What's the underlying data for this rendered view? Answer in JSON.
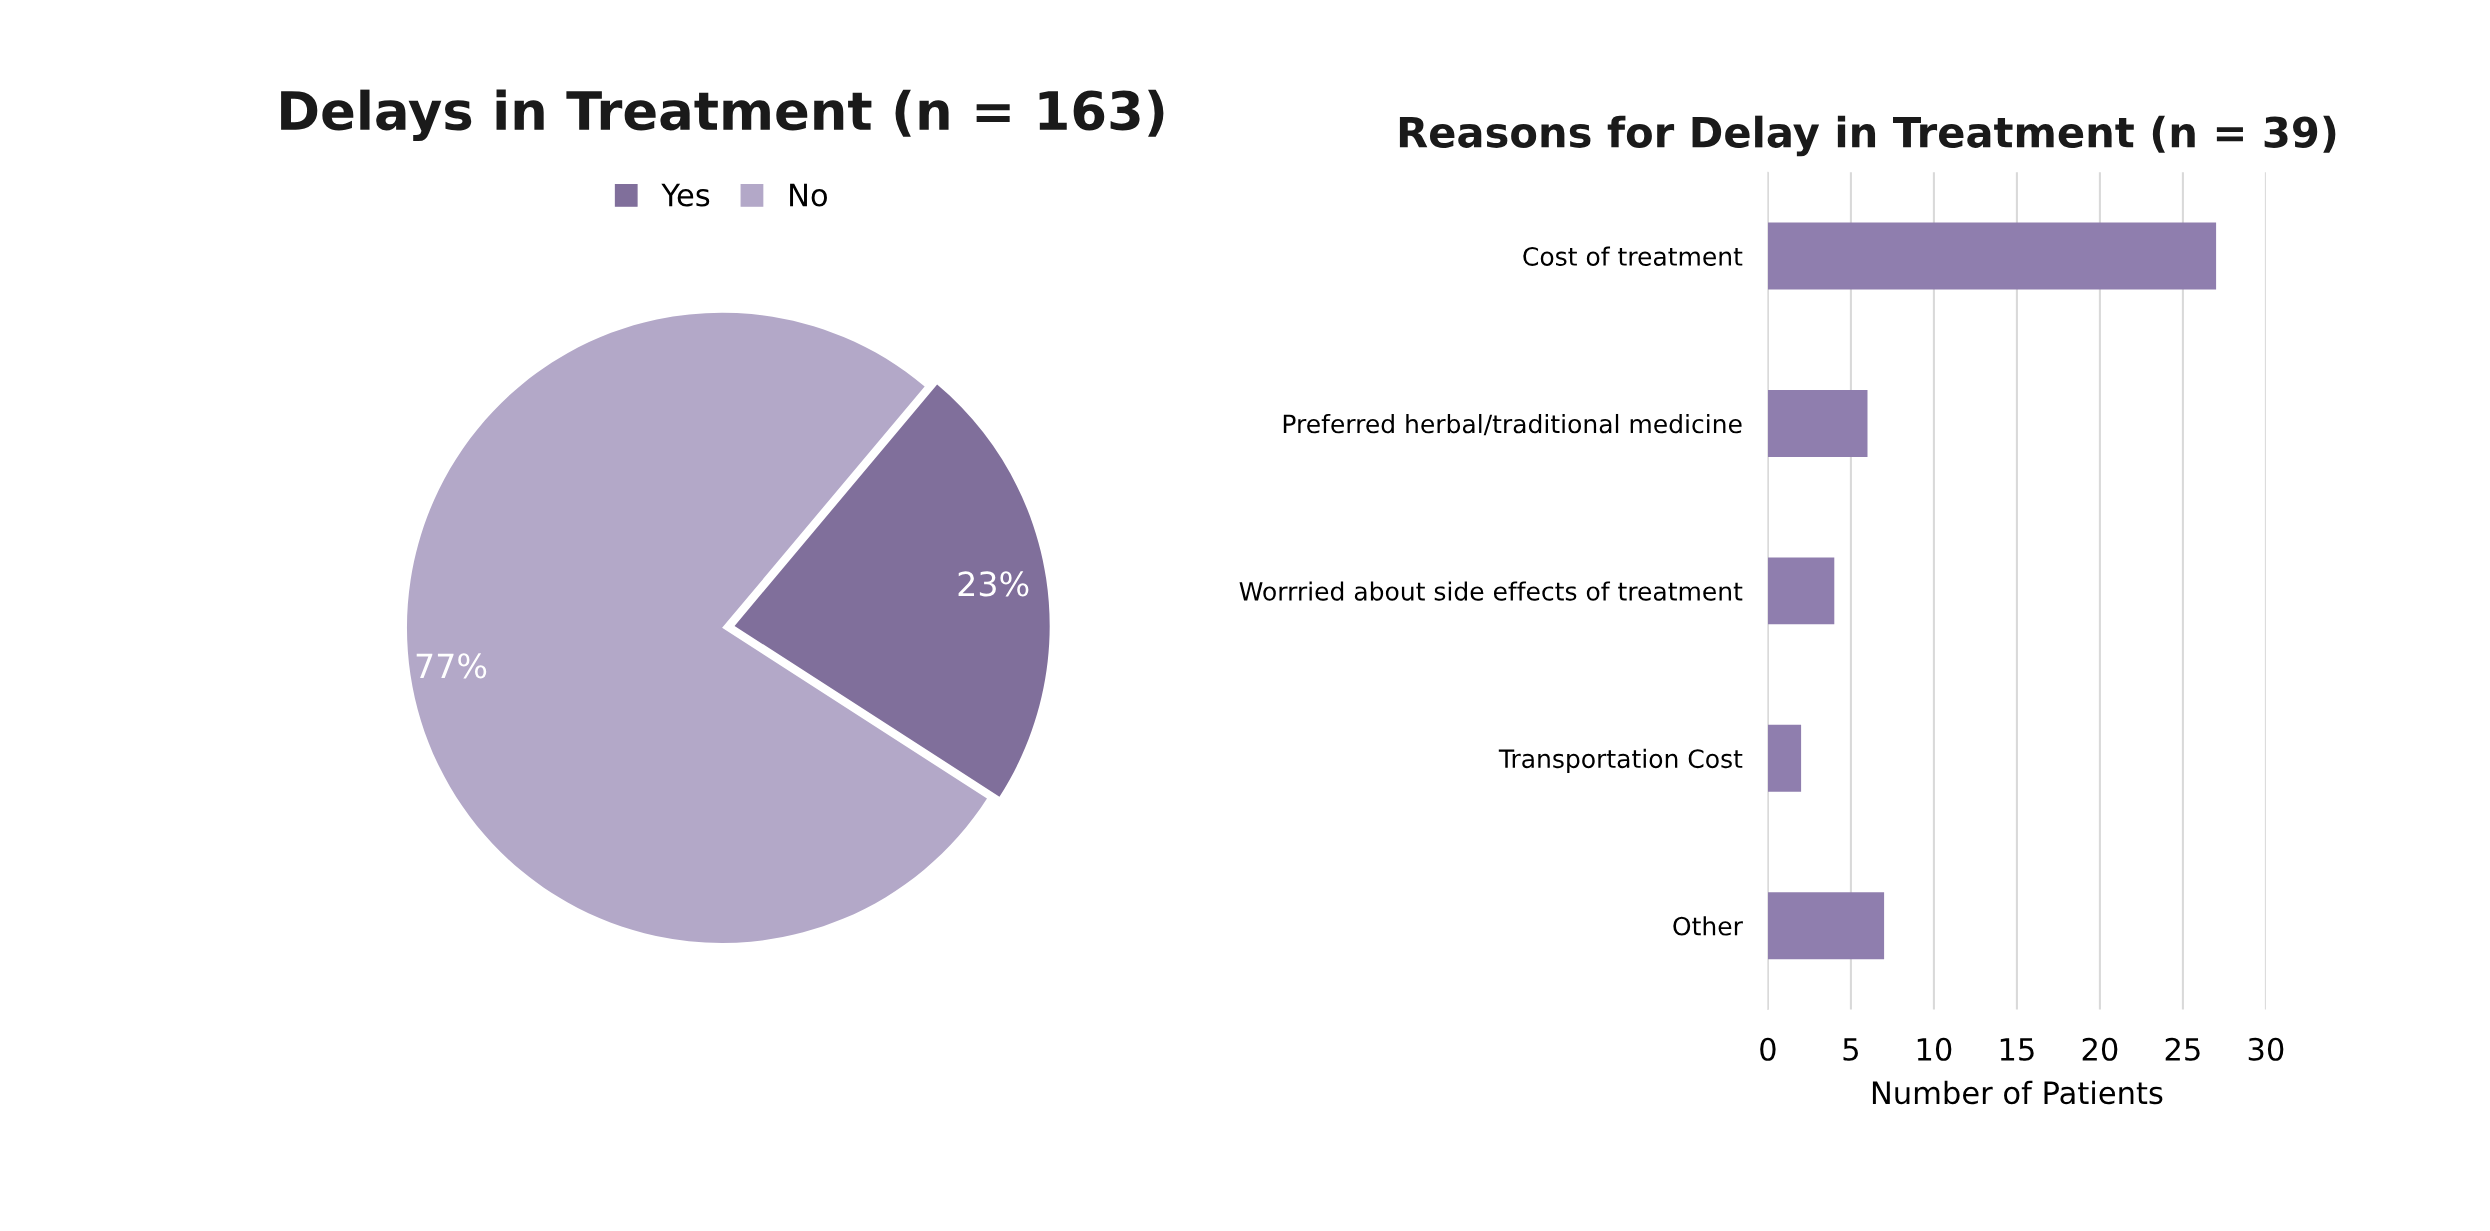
{
  "chart_data": [
    {
      "type": "pie",
      "title": "Delays in Treatment (n = 163)",
      "categories": [
        "Yes",
        "No"
      ],
      "values": [
        23,
        77
      ],
      "colors": [
        "#806f9b",
        "#b3a8c8"
      ],
      "value_labels": [
        "23%",
        "77%"
      ],
      "legend": "top"
    },
    {
      "type": "bar",
      "orientation": "horizontal",
      "title": "Reasons for Delay in Treatment (n = 39)",
      "categories": [
        "Cost of treatment",
        "Preferred herbal/traditional medicine",
        "Worrried about side effects of treatment",
        "Transportation Cost",
        "Other"
      ],
      "values": [
        27,
        6,
        4,
        2,
        7
      ],
      "color": "#8f7eae",
      "xlabel": "Number of Patients",
      "xlim": [
        0,
        30
      ],
      "xticks": [
        0,
        5,
        10,
        15,
        20,
        25,
        30
      ],
      "grid": "x"
    }
  ]
}
